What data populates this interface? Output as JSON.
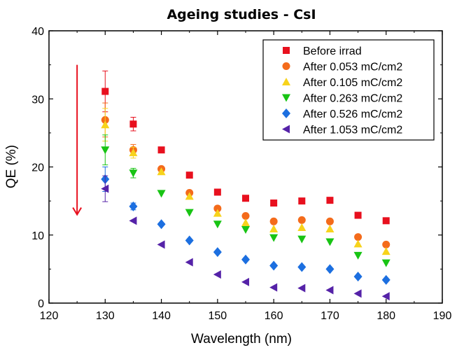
{
  "chart_data": {
    "type": "scatter",
    "title": "Ageing studies - CsI",
    "xlabel": "Wavelength (nm)",
    "ylabel": "QE (%)",
    "xlim": [
      120,
      190
    ],
    "ylim": [
      0,
      40
    ],
    "xticks": [
      120,
      130,
      140,
      150,
      160,
      170,
      180,
      190
    ],
    "yticks": [
      0,
      10,
      20,
      30,
      40
    ],
    "grid": false,
    "legend_position": "top-right",
    "x": [
      130,
      135,
      140,
      145,
      150,
      155,
      160,
      165,
      170,
      175,
      180
    ],
    "series": [
      {
        "name": "Before irrad",
        "marker": "square",
        "color": "#e8101e",
        "y": [
          31.1,
          26.3,
          22.5,
          18.8,
          16.3,
          15.4,
          14.7,
          15.0,
          15.1,
          12.9,
          12.1
        ],
        "err": [
          3.0,
          1.0,
          0,
          0,
          0,
          0,
          0,
          0,
          0,
          0,
          0
        ]
      },
      {
        "name": "After 0.053 mC/cm2",
        "marker": "circle",
        "color": "#f46b1b",
        "y": [
          26.9,
          22.5,
          19.7,
          16.2,
          13.9,
          12.8,
          12.0,
          12.2,
          12.0,
          9.7,
          8.6
        ],
        "err": [
          2.5,
          0.8,
          0,
          0,
          0,
          0,
          0,
          0,
          0,
          0,
          0
        ]
      },
      {
        "name": "After 0.105 mC/cm2",
        "marker": "triangle-up",
        "color": "#f7d31c",
        "y": [
          26.2,
          22.1,
          19.3,
          15.7,
          13.2,
          11.8,
          10.9,
          11.1,
          10.9,
          8.7,
          7.6
        ],
        "err": [
          2.4,
          0.8,
          0,
          0,
          0,
          0,
          0,
          0,
          0,
          0,
          0
        ]
      },
      {
        "name": "After 0.263 mC/cm2",
        "marker": "triangle-down",
        "color": "#18c414",
        "y": [
          22.5,
          19.1,
          16.1,
          13.3,
          11.6,
          10.8,
          9.6,
          9.4,
          9.0,
          7.0,
          5.9
        ],
        "err": [
          2.2,
          0.7,
          0,
          0,
          0,
          0,
          0,
          0,
          0,
          0,
          0
        ]
      },
      {
        "name": "After 0.526 mC/cm2",
        "marker": "diamond",
        "color": "#1c6fe0",
        "y": [
          18.2,
          14.2,
          11.6,
          9.2,
          7.5,
          6.4,
          5.5,
          5.3,
          5.0,
          3.9,
          3.4
        ],
        "err": [
          1.8,
          0.5,
          0,
          0,
          0,
          0,
          0,
          0,
          0,
          0,
          0
        ]
      },
      {
        "name": "After 1.053 mC/cm2",
        "marker": "triangle-left",
        "color": "#5522a8",
        "y": [
          16.8,
          12.1,
          8.6,
          6.0,
          4.2,
          3.1,
          2.3,
          2.2,
          1.9,
          1.4,
          1.0
        ],
        "err": [
          1.9,
          0,
          0,
          0,
          0,
          0,
          0,
          0,
          0,
          0,
          0
        ]
      }
    ],
    "annotations": [
      {
        "type": "arrow",
        "color": "#e8101e",
        "x": 125,
        "y_from": 35,
        "y_to": 13
      }
    ]
  }
}
